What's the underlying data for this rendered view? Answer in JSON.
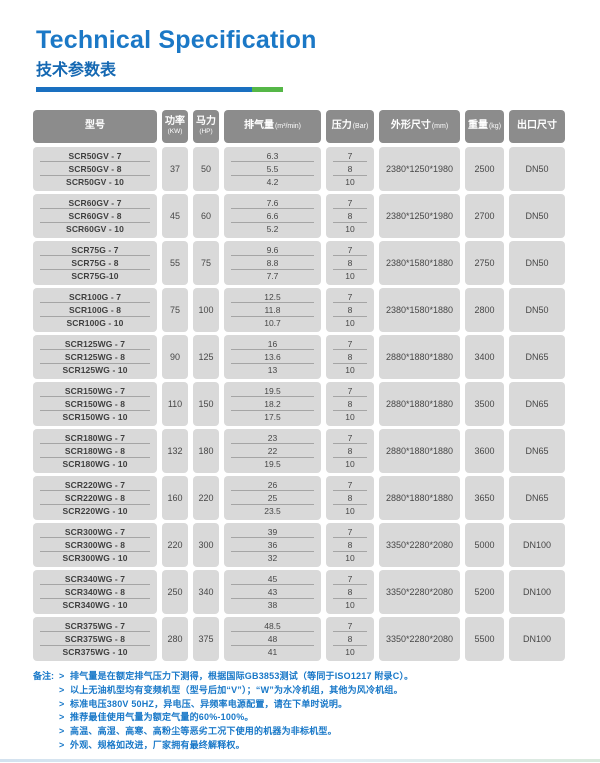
{
  "page": {
    "title": "Technical Specification",
    "subtitle": "技术参数表"
  },
  "colors": {
    "accent_blue": "#1b78c6",
    "accent_green": "#55b747",
    "header_gray": "#8c8c8c",
    "cell_gray": "#d9d9d9",
    "note_blue": "#1878c8"
  },
  "table": {
    "headers": {
      "model": {
        "main": "型号"
      },
      "power": {
        "main": "功率",
        "sub": "(KW)"
      },
      "hp": {
        "main": "马力",
        "sub": "(HP)"
      },
      "displacement": {
        "main": "排气量",
        "sub": "(m³/min)"
      },
      "pressure": {
        "main": "压力",
        "sub": "(Bar)"
      },
      "dimensions": {
        "main": "外形尺寸",
        "sub": "(mm)"
      },
      "weight": {
        "main": "重量",
        "sub": "(kg)"
      },
      "outlet": {
        "main": "出口尺寸"
      }
    },
    "groups": [
      {
        "models": [
          "SCR50GV - 7",
          "SCR50GV - 8",
          "SCR50GV - 10"
        ],
        "power": "37",
        "hp": "50",
        "displacement": [
          "6.3",
          "5.5",
          "4.2"
        ],
        "pressure": [
          "7",
          "8",
          "10"
        ],
        "dimensions": "2380*1250*1980",
        "weight": "2500",
        "outlet": "DN50"
      },
      {
        "models": [
          "SCR60GV - 7",
          "SCR60GV - 8",
          "SCR60GV - 10"
        ],
        "power": "45",
        "hp": "60",
        "displacement": [
          "7.6",
          "6.6",
          "5.2"
        ],
        "pressure": [
          "7",
          "8",
          "10"
        ],
        "dimensions": "2380*1250*1980",
        "weight": "2700",
        "outlet": "DN50"
      },
      {
        "models": [
          "SCR75G - 7",
          "SCR75G - 8",
          "SCR75G-10"
        ],
        "power": "55",
        "hp": "75",
        "displacement": [
          "9.6",
          "8.8",
          "7.7"
        ],
        "pressure": [
          "7",
          "8",
          "10"
        ],
        "dimensions": "2380*1580*1880",
        "weight": "2750",
        "outlet": "DN50"
      },
      {
        "models": [
          "SCR100G - 7",
          "SCR100G - 8",
          "SCR100G - 10"
        ],
        "power": "75",
        "hp": "100",
        "displacement": [
          "12.5",
          "11.8",
          "10.7"
        ],
        "pressure": [
          "7",
          "8",
          "10"
        ],
        "dimensions": "2380*1580*1880",
        "weight": "2800",
        "outlet": "DN50"
      },
      {
        "models": [
          "SCR125WG - 7",
          "SCR125WG - 8",
          "SCR125WG - 10"
        ],
        "power": "90",
        "hp": "125",
        "displacement": [
          "16",
          "13.6",
          "13"
        ],
        "pressure": [
          "7",
          "8",
          "10"
        ],
        "dimensions": "2880*1880*1880",
        "weight": "3400",
        "outlet": "DN65"
      },
      {
        "models": [
          "SCR150WG - 7",
          "SCR150WG - 8",
          "SCR150WG - 10"
        ],
        "power": "110",
        "hp": "150",
        "displacement": [
          "19.5",
          "18.2",
          "17.5"
        ],
        "pressure": [
          "7",
          "8",
          "10"
        ],
        "dimensions": "2880*1880*1880",
        "weight": "3500",
        "outlet": "DN65"
      },
      {
        "models": [
          "SCR180WG - 7",
          "SCR180WG - 8",
          "SCR180WG - 10"
        ],
        "power": "132",
        "hp": "180",
        "displacement": [
          "23",
          "22",
          "19.5"
        ],
        "pressure": [
          "7",
          "8",
          "10"
        ],
        "dimensions": "2880*1880*1880",
        "weight": "3600",
        "outlet": "DN65"
      },
      {
        "models": [
          "SCR220WG - 7",
          "SCR220WG - 8",
          "SCR220WG - 10"
        ],
        "power": "160",
        "hp": "220",
        "displacement": [
          "26",
          "25",
          "23.5"
        ],
        "pressure": [
          "7",
          "8",
          "10"
        ],
        "dimensions": "2880*1880*1880",
        "weight": "3650",
        "outlet": "DN65"
      },
      {
        "models": [
          "SCR300WG - 7",
          "SCR300WG - 8",
          "SCR300WG - 10"
        ],
        "power": "220",
        "hp": "300",
        "displacement": [
          "39",
          "36",
          "32"
        ],
        "pressure": [
          "7",
          "8",
          "10"
        ],
        "dimensions": "3350*2280*2080",
        "weight": "5000",
        "outlet": "DN100"
      },
      {
        "models": [
          "SCR340WG - 7",
          "SCR340WG - 8",
          "SCR340WG - 10"
        ],
        "power": "250",
        "hp": "340",
        "displacement": [
          "45",
          "43",
          "38"
        ],
        "pressure": [
          "7",
          "8",
          "10"
        ],
        "dimensions": "3350*2280*2080",
        "weight": "5200",
        "outlet": "DN100"
      },
      {
        "models": [
          "SCR375WG - 7",
          "SCR375WG - 8",
          "SCR375WG - 10"
        ],
        "power": "280",
        "hp": "375",
        "displacement": [
          "48.5",
          "48",
          "41"
        ],
        "pressure": [
          "7",
          "8",
          "10"
        ],
        "dimensions": "3350*2280*2080",
        "weight": "5500",
        "outlet": "DN100"
      }
    ]
  },
  "notes": {
    "label": "备注:",
    "bullet": ">",
    "items": [
      "排气量是在额定排气压力下测得，根据国际GB3853测试（等同于ISO1217 附录C）。",
      "以上无油机型均有变频机型（型号后加“V”）；“W”为水冷机组，其他为风冷机组。",
      "标准电压380V 50HZ，异电压、异频率电源配置，请在下单时说明。",
      "推荐最佳使用气量为额定气量的60%-100%。",
      "高温、高湿、高寒、高粉尘等恶劣工况下使用的机器为非标机型。",
      "外观、规格如改进，厂家拥有最终解释权。"
    ]
  }
}
